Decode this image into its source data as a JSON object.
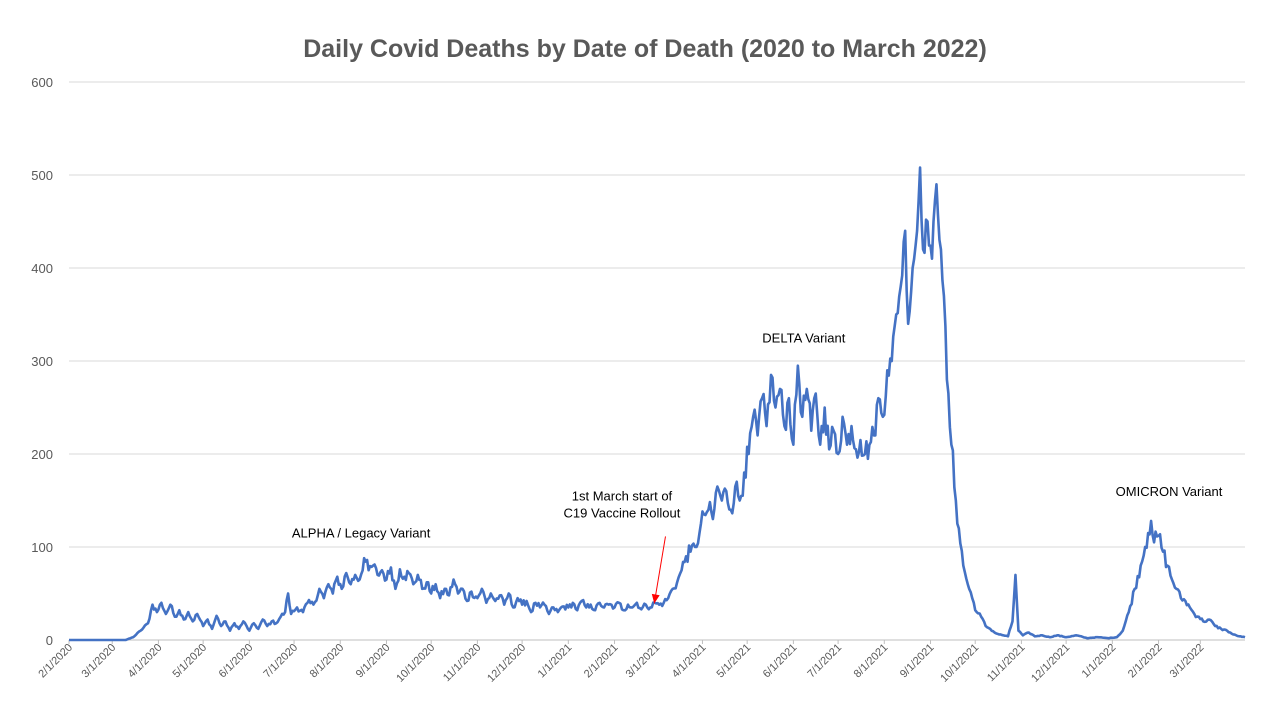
{
  "chart_data": {
    "type": "line",
    "title": "Daily Covid Deaths by Date of Death (2020 to March 2022)",
    "xlabel": "",
    "ylabel": "",
    "ylim": [
      0,
      600
    ],
    "yticks": [
      0,
      100,
      200,
      300,
      400,
      500,
      600
    ],
    "xlim": [
      "2020-02-01",
      "2022-03-31"
    ],
    "xticks": [
      {
        "label": "2/1/2020",
        "date": "2020-02-01"
      },
      {
        "label": "3/1/2020",
        "date": "2020-03-01"
      },
      {
        "label": "4/1/2020",
        "date": "2020-04-01"
      },
      {
        "label": "5/1/2020",
        "date": "2020-05-01"
      },
      {
        "label": "6/1/2020",
        "date": "2020-06-01"
      },
      {
        "label": "7/1/2020",
        "date": "2020-07-01"
      },
      {
        "label": "8/1/2020",
        "date": "2020-08-01"
      },
      {
        "label": "9/1/2020",
        "date": "2020-09-01"
      },
      {
        "label": "10/1/2020",
        "date": "2020-10-01"
      },
      {
        "label": "11/1/2020",
        "date": "2020-11-01"
      },
      {
        "label": "12/1/2020",
        "date": "2020-12-01"
      },
      {
        "label": "1/1/2021",
        "date": "2021-01-01"
      },
      {
        "label": "2/1/2021",
        "date": "2021-02-01"
      },
      {
        "label": "3/1/2021",
        "date": "2021-03-01"
      },
      {
        "label": "4/1/2021",
        "date": "2021-04-01"
      },
      {
        "label": "5/1/2021",
        "date": "2021-05-01"
      },
      {
        "label": "6/1/2021",
        "date": "2021-06-01"
      },
      {
        "label": "7/1/2021",
        "date": "2021-07-01"
      },
      {
        "label": "8/1/2021",
        "date": "2021-08-01"
      },
      {
        "label": "9/1/2021",
        "date": "2021-09-01"
      },
      {
        "label": "10/1/2021",
        "date": "2021-10-01"
      },
      {
        "label": "11/1/2021",
        "date": "2021-11-01"
      },
      {
        "label": "12/1/2021",
        "date": "2021-12-01"
      },
      {
        "label": "1/1/2022",
        "date": "2022-01-01"
      },
      {
        "label": "2/1/2022",
        "date": "2022-02-01"
      },
      {
        "label": "3/1/2022",
        "date": "2022-03-01"
      }
    ],
    "grid": true,
    "legend": "none",
    "series": [
      {
        "color": "#4472c4",
        "points": [
          [
            "2020-02-01",
            0
          ],
          [
            "2020-02-15",
            0
          ],
          [
            "2020-03-01",
            0
          ],
          [
            "2020-03-10",
            0
          ],
          [
            "2020-03-15",
            3
          ],
          [
            "2020-03-20",
            10
          ],
          [
            "2020-03-25",
            18
          ],
          [
            "2020-03-28",
            38
          ],
          [
            "2020-03-31",
            30
          ],
          [
            "2020-04-03",
            40
          ],
          [
            "2020-04-06",
            28
          ],
          [
            "2020-04-09",
            38
          ],
          [
            "2020-04-12",
            25
          ],
          [
            "2020-04-15",
            32
          ],
          [
            "2020-04-18",
            22
          ],
          [
            "2020-04-21",
            30
          ],
          [
            "2020-04-24",
            20
          ],
          [
            "2020-04-27",
            28
          ],
          [
            "2020-05-01",
            15
          ],
          [
            "2020-05-04",
            22
          ],
          [
            "2020-05-07",
            12
          ],
          [
            "2020-05-10",
            26
          ],
          [
            "2020-05-13",
            15
          ],
          [
            "2020-05-16",
            20
          ],
          [
            "2020-05-19",
            10
          ],
          [
            "2020-05-22",
            18
          ],
          [
            "2020-05-25",
            12
          ],
          [
            "2020-05-28",
            20
          ],
          [
            "2020-06-01",
            10
          ],
          [
            "2020-06-04",
            18
          ],
          [
            "2020-06-07",
            12
          ],
          [
            "2020-06-10",
            22
          ],
          [
            "2020-06-13",
            15
          ],
          [
            "2020-06-16",
            20
          ],
          [
            "2020-06-19",
            18
          ],
          [
            "2020-06-22",
            25
          ],
          [
            "2020-06-25",
            30
          ],
          [
            "2020-06-27",
            50
          ],
          [
            "2020-06-29",
            28
          ],
          [
            "2020-07-03",
            35
          ],
          [
            "2020-07-07",
            30
          ],
          [
            "2020-07-10",
            40
          ],
          [
            "2020-07-14",
            38
          ],
          [
            "2020-07-18",
            55
          ],
          [
            "2020-07-21",
            45
          ],
          [
            "2020-07-24",
            60
          ],
          [
            "2020-07-27",
            50
          ],
          [
            "2020-07-30",
            68
          ],
          [
            "2020-08-02",
            55
          ],
          [
            "2020-08-05",
            72
          ],
          [
            "2020-08-08",
            60
          ],
          [
            "2020-08-11",
            70
          ],
          [
            "2020-08-14",
            65
          ],
          [
            "2020-08-17",
            88
          ],
          [
            "2020-08-20",
            75
          ],
          [
            "2020-08-23",
            80
          ],
          [
            "2020-08-26",
            70
          ],
          [
            "2020-08-29",
            75
          ],
          [
            "2020-09-01",
            65
          ],
          [
            "2020-09-04",
            78
          ],
          [
            "2020-09-07",
            55
          ],
          [
            "2020-09-10",
            76
          ],
          [
            "2020-09-13",
            68
          ],
          [
            "2020-09-16",
            72
          ],
          [
            "2020-09-19",
            60
          ],
          [
            "2020-09-22",
            70
          ],
          [
            "2020-09-25",
            55
          ],
          [
            "2020-09-28",
            62
          ],
          [
            "2020-10-01",
            50
          ],
          [
            "2020-10-04",
            60
          ],
          [
            "2020-10-07",
            45
          ],
          [
            "2020-10-10",
            55
          ],
          [
            "2020-10-13",
            48
          ],
          [
            "2020-10-16",
            65
          ],
          [
            "2020-10-19",
            50
          ],
          [
            "2020-10-22",
            55
          ],
          [
            "2020-10-25",
            42
          ],
          [
            "2020-10-28",
            52
          ],
          [
            "2020-11-01",
            45
          ],
          [
            "2020-11-04",
            55
          ],
          [
            "2020-11-07",
            40
          ],
          [
            "2020-11-10",
            50
          ],
          [
            "2020-11-13",
            42
          ],
          [
            "2020-11-16",
            48
          ],
          [
            "2020-11-19",
            38
          ],
          [
            "2020-11-22",
            50
          ],
          [
            "2020-11-25",
            35
          ],
          [
            "2020-11-28",
            45
          ],
          [
            "2020-12-01",
            38
          ],
          [
            "2020-12-04",
            42
          ],
          [
            "2020-12-07",
            30
          ],
          [
            "2020-12-10",
            40
          ],
          [
            "2020-12-13",
            35
          ],
          [
            "2020-12-16",
            38
          ],
          [
            "2020-12-19",
            28
          ],
          [
            "2020-12-22",
            35
          ],
          [
            "2020-12-25",
            30
          ],
          [
            "2020-12-28",
            36
          ],
          [
            "2021-01-01",
            35
          ],
          [
            "2021-01-04",
            40
          ],
          [
            "2021-01-07",
            32
          ],
          [
            "2021-01-10",
            42
          ],
          [
            "2021-01-13",
            35
          ],
          [
            "2021-01-16",
            38
          ],
          [
            "2021-01-19",
            32
          ],
          [
            "2021-01-22",
            40
          ],
          [
            "2021-01-25",
            35
          ],
          [
            "2021-01-28",
            38
          ],
          [
            "2021-02-01",
            35
          ],
          [
            "2021-02-04",
            40
          ],
          [
            "2021-02-07",
            32
          ],
          [
            "2021-02-10",
            38
          ],
          [
            "2021-02-13",
            35
          ],
          [
            "2021-02-16",
            40
          ],
          [
            "2021-02-19",
            33
          ],
          [
            "2021-02-22",
            38
          ],
          [
            "2021-02-25",
            35
          ],
          [
            "2021-02-28",
            40
          ],
          [
            "2021-03-03",
            38
          ],
          [
            "2021-03-06",
            40
          ],
          [
            "2021-03-09",
            45
          ],
          [
            "2021-03-12",
            55
          ],
          [
            "2021-03-15",
            62
          ],
          [
            "2021-03-18",
            75
          ],
          [
            "2021-03-21",
            90
          ],
          [
            "2021-03-24",
            95
          ],
          [
            "2021-03-27",
            100
          ],
          [
            "2021-03-30",
            115
          ],
          [
            "2021-04-02",
            135
          ],
          [
            "2021-04-05",
            140
          ],
          [
            "2021-04-08",
            130
          ],
          [
            "2021-04-11",
            165
          ],
          [
            "2021-04-14",
            150
          ],
          [
            "2021-04-17",
            160
          ],
          [
            "2021-04-20",
            140
          ],
          [
            "2021-04-23",
            165
          ],
          [
            "2021-04-26",
            150
          ],
          [
            "2021-04-29",
            180
          ],
          [
            "2021-05-02",
            200
          ],
          [
            "2021-05-05",
            240
          ],
          [
            "2021-05-08",
            220
          ],
          [
            "2021-05-11",
            260
          ],
          [
            "2021-05-14",
            230
          ],
          [
            "2021-05-17",
            285
          ],
          [
            "2021-05-20",
            250
          ],
          [
            "2021-05-23",
            270
          ],
          [
            "2021-05-26",
            230
          ],
          [
            "2021-05-29",
            260
          ],
          [
            "2021-06-01",
            210
          ],
          [
            "2021-06-04",
            295
          ],
          [
            "2021-06-07",
            240
          ],
          [
            "2021-06-10",
            270
          ],
          [
            "2021-06-13",
            225
          ],
          [
            "2021-06-16",
            265
          ],
          [
            "2021-06-19",
            210
          ],
          [
            "2021-06-22",
            250
          ],
          [
            "2021-06-25",
            205
          ],
          [
            "2021-06-28",
            225
          ],
          [
            "2021-07-01",
            200
          ],
          [
            "2021-07-04",
            240
          ],
          [
            "2021-07-07",
            210
          ],
          [
            "2021-07-10",
            230
          ],
          [
            "2021-07-13",
            205
          ],
          [
            "2021-07-16",
            215
          ],
          [
            "2021-07-19",
            200
          ],
          [
            "2021-07-22",
            210
          ],
          [
            "2021-07-25",
            220
          ],
          [
            "2021-07-28",
            260
          ],
          [
            "2021-07-31",
            240
          ],
          [
            "2021-08-03",
            290
          ],
          [
            "2021-08-06",
            300
          ],
          [
            "2021-08-09",
            350
          ],
          [
            "2021-08-12",
            380
          ],
          [
            "2021-08-15",
            440
          ],
          [
            "2021-08-17",
            340
          ],
          [
            "2021-08-20",
            400
          ],
          [
            "2021-08-23",
            440
          ],
          [
            "2021-08-25",
            508
          ],
          [
            "2021-08-27",
            420
          ],
          [
            "2021-08-30",
            450
          ],
          [
            "2021-09-02",
            410
          ],
          [
            "2021-09-05",
            490
          ],
          [
            "2021-09-08",
            420
          ],
          [
            "2021-09-10",
            370
          ],
          [
            "2021-09-12",
            280
          ],
          [
            "2021-09-15",
            210
          ],
          [
            "2021-09-18",
            150
          ],
          [
            "2021-09-20",
            120
          ],
          [
            "2021-09-23",
            80
          ],
          [
            "2021-09-26",
            60
          ],
          [
            "2021-09-29",
            45
          ],
          [
            "2021-10-02",
            30
          ],
          [
            "2021-10-05",
            25
          ],
          [
            "2021-10-08",
            15
          ],
          [
            "2021-10-11",
            12
          ],
          [
            "2021-10-14",
            8
          ],
          [
            "2021-10-17",
            6
          ],
          [
            "2021-10-20",
            5
          ],
          [
            "2021-10-23",
            4
          ],
          [
            "2021-10-26",
            20
          ],
          [
            "2021-10-28",
            70
          ],
          [
            "2021-10-30",
            10
          ],
          [
            "2021-11-02",
            5
          ],
          [
            "2021-11-06",
            8
          ],
          [
            "2021-11-10",
            4
          ],
          [
            "2021-11-15",
            5
          ],
          [
            "2021-11-20",
            3
          ],
          [
            "2021-11-25",
            5
          ],
          [
            "2021-12-01",
            3
          ],
          [
            "2021-12-08",
            5
          ],
          [
            "2021-12-15",
            2
          ],
          [
            "2021-12-22",
            3
          ],
          [
            "2021-12-29",
            2
          ],
          [
            "2022-01-04",
            3
          ],
          [
            "2022-01-08",
            10
          ],
          [
            "2022-01-12",
            30
          ],
          [
            "2022-01-16",
            55
          ],
          [
            "2022-01-20",
            80
          ],
          [
            "2022-01-23",
            100
          ],
          [
            "2022-01-25",
            115
          ],
          [
            "2022-01-27",
            128
          ],
          [
            "2022-01-29",
            105
          ],
          [
            "2022-02-01",
            112
          ],
          [
            "2022-02-04",
            95
          ],
          [
            "2022-02-07",
            80
          ],
          [
            "2022-02-10",
            65
          ],
          [
            "2022-02-13",
            55
          ],
          [
            "2022-02-16",
            45
          ],
          [
            "2022-02-19",
            42
          ],
          [
            "2022-02-22",
            35
          ],
          [
            "2022-02-25",
            28
          ],
          [
            "2022-02-28",
            25
          ],
          [
            "2022-03-03",
            20
          ],
          [
            "2022-03-07",
            22
          ],
          [
            "2022-03-11",
            15
          ],
          [
            "2022-03-15",
            12
          ],
          [
            "2022-03-19",
            10
          ],
          [
            "2022-03-23",
            6
          ],
          [
            "2022-03-27",
            4
          ],
          [
            "2022-03-31",
            3
          ]
        ]
      }
    ],
    "annotations": [
      {
        "id": "alpha",
        "lines": [
          "ALPHA / Legacy Variant"
        ],
        "date": "2020-08-15",
        "value": 110
      },
      {
        "id": "vaccine",
        "lines": [
          "1st March start of",
          "C19 Vaccine Rollout"
        ],
        "date": "2021-02-06",
        "value": 150
      },
      {
        "id": "delta",
        "lines": [
          "DELTA Variant"
        ],
        "date": "2021-06-08",
        "value": 320
      },
      {
        "id": "omicron",
        "lines": [
          "OMICRON Variant"
        ],
        "date": "2022-02-08",
        "value": 155
      }
    ],
    "arrow": {
      "color": "#ff0000",
      "from": {
        "date": "2021-02-05",
        "value": 120
      },
      "to": {
        "date": "2021-03-01",
        "value": 35
      }
    }
  }
}
